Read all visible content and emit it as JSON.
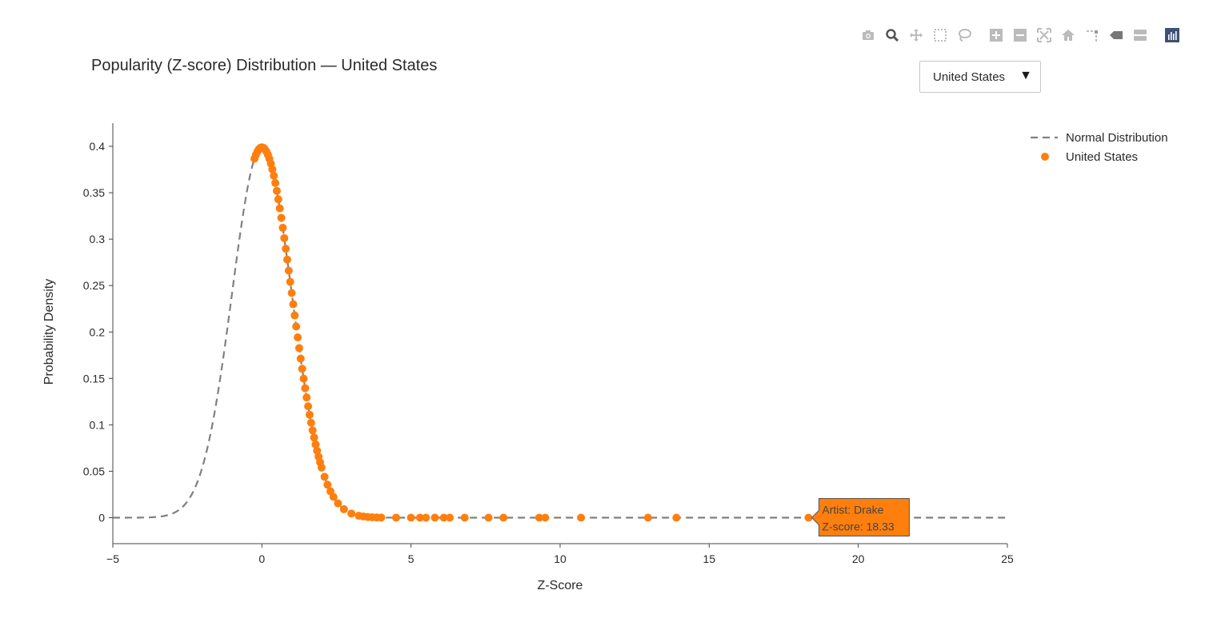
{
  "modebar": {
    "icons": [
      "camera-icon",
      "zoom-icon",
      "pan-icon",
      "box-select-icon",
      "lasso-icon",
      "zoom-in-icon",
      "zoom-out-icon",
      "autoscale-icon",
      "reset-axes-icon",
      "spike-lines-icon",
      "hover-closest-icon",
      "hover-compare-icon",
      "plotly-logo-icon"
    ]
  },
  "dropdown": {
    "selected": "United States"
  },
  "chart_data": {
    "type": "scatter",
    "title": "Popularity (Z-score) Distribution — United States",
    "xlabel": "Z-Score",
    "ylabel": "Probability Density",
    "xlim": [
      -5,
      25
    ],
    "ylim": [
      -0.028,
      0.425
    ],
    "xticks": [
      -5,
      0,
      5,
      10,
      15,
      20,
      25
    ],
    "xtick_labels": [
      "−5",
      "0",
      "5",
      "10",
      "15",
      "20",
      "25"
    ],
    "yticks": [
      0,
      0.05,
      0.1,
      0.15,
      0.2,
      0.25,
      0.3,
      0.35,
      0.4
    ],
    "ytick_labels": [
      "0",
      "0.05",
      "0.1",
      "0.15",
      "0.2",
      "0.25",
      "0.3",
      "0.35",
      "0.4"
    ],
    "grid": false,
    "legend_position": "top-right",
    "series": [
      {
        "name": "Normal Distribution",
        "kind": "line",
        "dash": "dashed",
        "color": "#808080",
        "function": "standard-normal-pdf",
        "x_range": [
          -5,
          25
        ]
      },
      {
        "name": "United States",
        "kind": "markers",
        "color": "#ff7f0e",
        "x": [
          -0.25,
          -0.2,
          -0.15,
          -0.1,
          -0.05,
          0,
          0.05,
          0.1,
          0.15,
          0.2,
          0.25,
          0.3,
          0.35,
          0.4,
          0.45,
          0.5,
          0.55,
          0.6,
          0.65,
          0.7,
          0.75,
          0.8,
          0.85,
          0.9,
          0.95,
          1.0,
          1.05,
          1.1,
          1.15,
          1.2,
          1.25,
          1.3,
          1.35,
          1.4,
          1.45,
          1.5,
          1.55,
          1.6,
          1.65,
          1.7,
          1.75,
          1.8,
          1.85,
          1.9,
          1.95,
          2.0,
          2.1,
          2.2,
          2.3,
          2.4,
          2.55,
          2.75,
          3.0,
          3.25,
          3.4,
          3.55,
          3.7,
          3.85,
          4.0,
          4.5,
          5.0,
          5.3,
          5.5,
          5.8,
          6.1,
          6.3,
          6.8,
          7.6,
          8.1,
          9.3,
          9.5,
          10.7,
          12.95,
          13.9,
          18.33
        ],
        "y_from_pdf": true
      },
      {
        "name": "hover",
        "kind": "tooltip",
        "x": 18.33,
        "y": 0
      }
    ],
    "tooltip": {
      "line1": "Artist: Drake",
      "line2": "Z-score: 18.33"
    }
  }
}
